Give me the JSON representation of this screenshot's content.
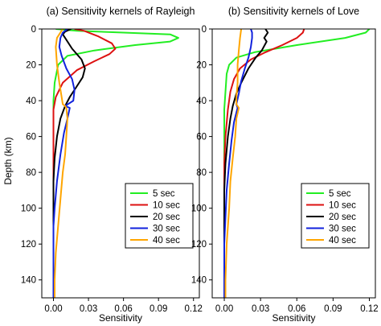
{
  "y_axis_label": "Depth (km)",
  "series_colors": {
    "5 sec": "#22ee22",
    "10 sec": "#dd1111",
    "20 sec": "#000000",
    "30 sec": "#1122dd",
    "40 sec": "#ffa500"
  },
  "chart_data": [
    {
      "type": "line",
      "title": "(a) Sensitivity kernels of Rayleigh",
      "xlabel": "Sensitivity",
      "ylabel": "Depth (km)",
      "xlim": [
        -0.01,
        0.125
      ],
      "ylim": [
        150,
        0
      ],
      "xticks": [
        "0.00",
        "0.03",
        "0.06",
        "0.09",
        "0.12"
      ],
      "yticks": [
        "0",
        "20",
        "40",
        "60",
        "80",
        "100",
        "120",
        "140"
      ],
      "legend_placement": "bottom-right",
      "series": [
        {
          "name": "5 sec",
          "points": [
            [
              0.002,
              0
            ],
            [
              0.02,
              1
            ],
            [
              0.06,
              2
            ],
            [
              0.1,
              3
            ],
            [
              0.107,
              5
            ],
            [
              0.1,
              7
            ],
            [
              0.07,
              9
            ],
            [
              0.035,
              12
            ],
            [
              0.012,
              15
            ],
            [
              0.004,
              20
            ],
            [
              0.001,
              30
            ],
            [
              0,
              40
            ],
            [
              0,
              150
            ]
          ]
        },
        {
          "name": "10 sec",
          "points": [
            [
              0.018,
              0
            ],
            [
              0.026,
              1
            ],
            [
              0.038,
              4
            ],
            [
              0.05,
              8
            ],
            [
              0.053,
              11
            ],
            [
              0.048,
              14
            ],
            [
              0.035,
              18
            ],
            [
              0.02,
              23
            ],
            [
              0.008,
              30
            ],
            [
              0.002,
              38
            ],
            [
              0,
              45
            ],
            [
              0,
              150
            ]
          ]
        },
        {
          "name": "20 sec",
          "points": [
            [
              0.015,
              0
            ],
            [
              0.01,
              1.5
            ],
            [
              0.008,
              3
            ],
            [
              0.01,
              5
            ],
            [
              0.016,
              11
            ],
            [
              0.024,
              17
            ],
            [
              0.027,
              22
            ],
            [
              0.025,
              27
            ],
            [
              0.019,
              33
            ],
            [
              0.014,
              38
            ],
            [
              0.01,
              43
            ],
            [
              0.006,
              50
            ],
            [
              0.003,
              60
            ],
            [
              0.001,
              72
            ],
            [
              0,
              85
            ],
            [
              0,
              150
            ]
          ]
        },
        {
          "name": "30 sec",
          "points": [
            [
              0.012,
              0
            ],
            [
              0.008,
              2
            ],
            [
              0.006,
              5
            ],
            [
              0.005,
              10
            ],
            [
              0.007,
              15
            ],
            [
              0.011,
              22
            ],
            [
              0.016,
              28
            ],
            [
              0.018,
              34
            ],
            [
              0.017,
              40
            ],
            [
              0.01,
              43
            ],
            [
              0.014,
              44
            ],
            [
              0.012,
              50
            ],
            [
              0.009,
              58
            ],
            [
              0.006,
              70
            ],
            [
              0.003,
              85
            ],
            [
              0.001,
              100
            ],
            [
              0,
              110
            ],
            [
              0,
              150
            ]
          ]
        },
        {
          "name": "40 sec",
          "points": [
            [
              0.008,
              0
            ],
            [
              0.003,
              5
            ],
            [
              0.002,
              10
            ],
            [
              0.003,
              20
            ],
            [
              0.005,
              30
            ],
            [
              0.007,
              38
            ],
            [
              0.008,
              42
            ],
            [
              0.01,
              43
            ],
            [
              0.011,
              44
            ],
            [
              0.012,
              50
            ],
            [
              0.011,
              60
            ],
            [
              0.01,
              70
            ],
            [
              0.008,
              80
            ],
            [
              0.006,
              95
            ],
            [
              0.004,
              110
            ],
            [
              0.002,
              125
            ],
            [
              0.001,
              140
            ],
            [
              0.001,
              150
            ]
          ]
        }
      ]
    },
    {
      "type": "line",
      "title": "(b) Sensitivity kernels of Love",
      "xlabel": "Sensitivity",
      "ylabel": "",
      "xlim": [
        -0.01,
        0.125
      ],
      "ylim": [
        150,
        0
      ],
      "xticks": [
        "0.00",
        "0.03",
        "0.06",
        "0.09",
        "0.12"
      ],
      "yticks": [
        "0",
        "20",
        "40",
        "60",
        "80",
        "100",
        "120",
        "140"
      ],
      "legend_placement": "bottom-right",
      "series": [
        {
          "name": "5 sec",
          "points": [
            [
              0.12,
              0
            ],
            [
              0.117,
              2
            ],
            [
              0.1,
              5
            ],
            [
              0.06,
              9
            ],
            [
              0.025,
              13
            ],
            [
              0.01,
              16
            ],
            [
              0.004,
              20
            ],
            [
              0.002,
              25
            ],
            [
              0.001,
              35
            ],
            [
              0,
              45
            ],
            [
              0,
              150
            ]
          ]
        },
        {
          "name": "10 sec",
          "points": [
            [
              0.066,
              0
            ],
            [
              0.065,
              2
            ],
            [
              0.06,
              5
            ],
            [
              0.048,
              9
            ],
            [
              0.034,
              13
            ],
            [
              0.022,
              17
            ],
            [
              0.013,
              22
            ],
            [
              0.008,
              28
            ],
            [
              0.005,
              35
            ],
            [
              0.003,
              45
            ],
            [
              0.001,
              60
            ],
            [
              0,
              75
            ],
            [
              0,
              150
            ]
          ]
        },
        {
          "name": "20 sec",
          "points": [
            [
              0.034,
              0
            ],
            [
              0.036,
              2
            ],
            [
              0.033,
              5
            ],
            [
              0.035,
              7
            ],
            [
              0.031,
              12
            ],
            [
              0.026,
              16
            ],
            [
              0.02,
              22
            ],
            [
              0.014,
              30
            ],
            [
              0.01,
              36
            ],
            [
              0.007,
              43
            ],
            [
              0.005,
              50
            ],
            [
              0.003,
              60
            ],
            [
              0.001,
              75
            ],
            [
              0,
              90
            ],
            [
              0,
              150
            ]
          ]
        },
        {
          "name": "30 sec",
          "points": [
            [
              0.022,
              0
            ],
            [
              0.023,
              2
            ],
            [
              0.023,
              5
            ],
            [
              0.022,
              10
            ],
            [
              0.02,
              16
            ],
            [
              0.017,
              22
            ],
            [
              0.014,
              29
            ],
            [
              0.012,
              36
            ],
            [
              0.01,
              42
            ],
            [
              0.011,
              44
            ],
            [
              0.008,
              52
            ],
            [
              0.006,
              62
            ],
            [
              0.004,
              75
            ],
            [
              0.002,
              90
            ],
            [
              0.001,
              105
            ],
            [
              0,
              120
            ],
            [
              0,
              150
            ]
          ]
        },
        {
          "name": "40 sec",
          "points": [
            [
              0.014,
              0
            ],
            [
              0.013,
              5
            ],
            [
              0.012,
              12
            ],
            [
              0.011,
              20
            ],
            [
              0.011,
              30
            ],
            [
              0.01,
              38
            ],
            [
              0.01,
              42
            ],
            [
              0.012,
              44
            ],
            [
              0.01,
              50
            ],
            [
              0.009,
              60
            ],
            [
              0.007,
              72
            ],
            [
              0.005,
              85
            ],
            [
              0.004,
              100
            ],
            [
              0.002,
              120
            ],
            [
              0.001,
              140
            ],
            [
              0.001,
              150
            ]
          ]
        }
      ]
    }
  ]
}
